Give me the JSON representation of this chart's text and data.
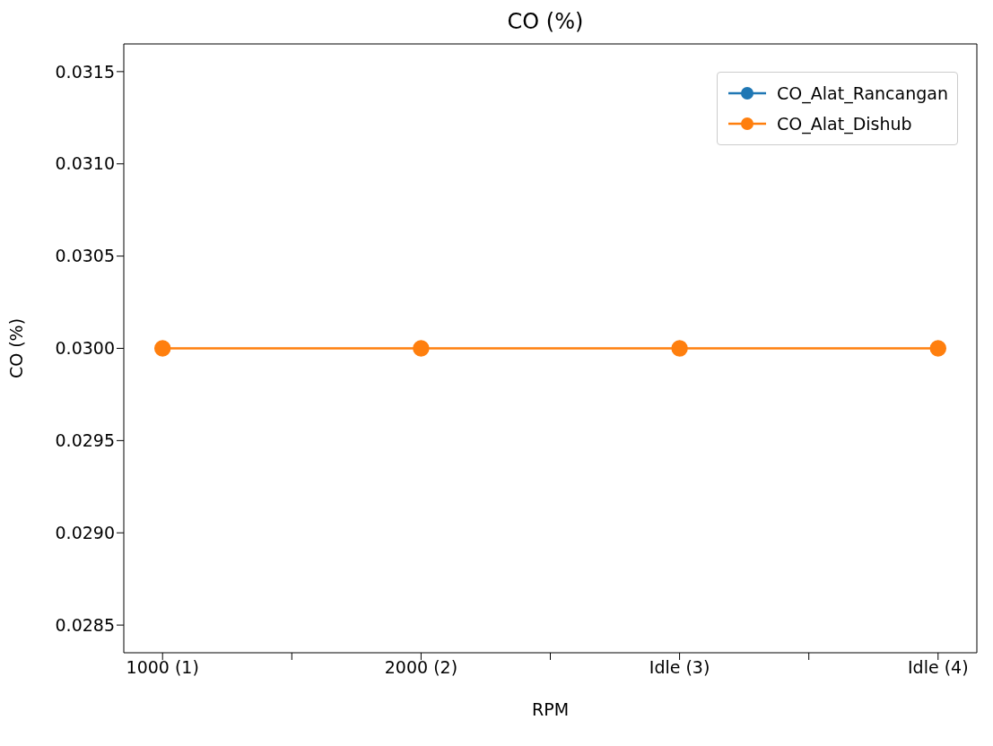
{
  "chart_data": {
    "type": "line",
    "title": "CO (%)",
    "xlabel": "RPM",
    "ylabel": "CO (%)",
    "categories": [
      "1000 (1)",
      "2000 (2)",
      "Idle (3)",
      "Idle (4)"
    ],
    "ylim": [
      0.02835,
      0.03165
    ],
    "yticks": [
      {
        "value": 0.0285,
        "label": "0.0285"
      },
      {
        "value": 0.029,
        "label": "0.0290"
      },
      {
        "value": 0.0295,
        "label": "0.0295"
      },
      {
        "value": 0.03,
        "label": "0.0300"
      },
      {
        "value": 0.0305,
        "label": "0.0305"
      },
      {
        "value": 0.031,
        "label": "0.0310"
      },
      {
        "value": 0.0315,
        "label": "0.0315"
      }
    ],
    "series": [
      {
        "name": "CO_Alat_Rancangan",
        "color": "#1f77b4",
        "values": [
          null,
          null,
          null,
          null
        ]
      },
      {
        "name": "CO_Alat_Dishub",
        "color": "#ff7f0e",
        "values": [
          0.03,
          0.03,
          0.03,
          0.03
        ]
      }
    ],
    "marker": "circle",
    "legend": "top right",
    "grid": false
  }
}
